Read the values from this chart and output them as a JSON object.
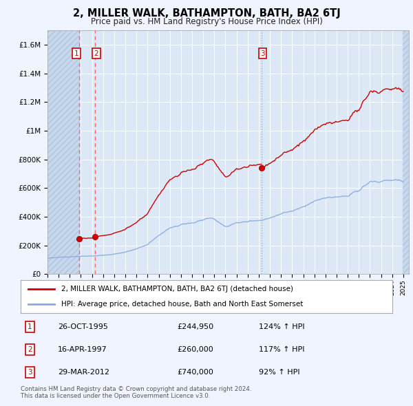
{
  "title": "2, MILLER WALK, BATHAMPTON, BATH, BA2 6TJ",
  "subtitle": "Price paid vs. HM Land Registry's House Price Index (HPI)",
  "background_color": "#f0f4ff",
  "plot_bg_color": "#dce8f5",
  "ylim": [
    0,
    1700000
  ],
  "yticks": [
    0,
    200000,
    400000,
    600000,
    800000,
    1000000,
    1200000,
    1400000,
    1600000
  ],
  "ytick_labels": [
    "£0",
    "£200K",
    "£400K",
    "£600K",
    "£800K",
    "£1M",
    "£1.2M",
    "£1.4M",
    "£1.6M"
  ],
  "xlim_start": 1993.0,
  "xlim_end": 2025.5,
  "sale_dates": [
    1995.82,
    1997.29,
    2012.25
  ],
  "sale_prices": [
    244950,
    260000,
    740000
  ],
  "marker_color": "#cc0000",
  "line_color": "#cc0000",
  "hpi_color": "#88aadd",
  "sale12_dash_color": "#ff6666",
  "sale3_dash_color": "#aaaacc",
  "footer_text": "Contains HM Land Registry data © Crown copyright and database right 2024.\nThis data is licensed under the Open Government Licence v3.0.",
  "legend_label1": "2, MILLER WALK, BATHAMPTON, BATH, BA2 6TJ (detached house)",
  "legend_label2": "HPI: Average price, detached house, Bath and North East Somerset",
  "table": [
    {
      "num": "1",
      "date": "26-OCT-1995",
      "price": "£244,950",
      "hpi": "124% ↑ HPI"
    },
    {
      "num": "2",
      "date": "16-APR-1997",
      "price": "£260,000",
      "hpi": "117% ↑ HPI"
    },
    {
      "num": "3",
      "date": "29-MAR-2012",
      "price": "£740,000",
      "hpi": "92% ↑ HPI"
    }
  ]
}
